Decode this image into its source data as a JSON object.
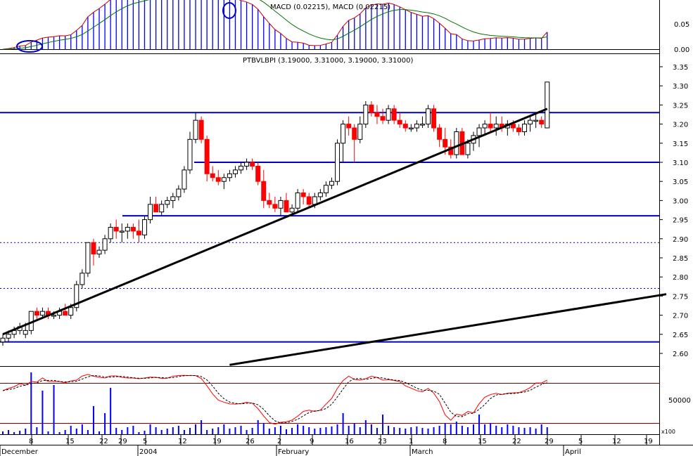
{
  "panels": {
    "macd": {
      "title": "MACD (0.02215), MACD (0.02215)",
      "yticks": [
        "0.05",
        "0.00"
      ]
    },
    "price": {
      "title": "PTBVLBPI (3.19000, 3.31000, 3.19000, 3.31000)",
      "yticks": [
        "3.35",
        "3.30",
        "3.25",
        "3.20",
        "3.15",
        "3.10",
        "3.05",
        "3.00",
        "2.95",
        "2.90",
        "2.85",
        "2.80",
        "2.75",
        "2.70",
        "2.65",
        "2.60"
      ]
    },
    "volume": {
      "yticks": [
        "50000"
      ],
      "multiplier": "x100"
    }
  },
  "xaxis": {
    "day_ticks": [
      "8",
      "15",
      "22",
      "29",
      "5",
      "12",
      "19",
      "26",
      "2",
      "9",
      "16",
      "23",
      "1",
      "8",
      "15",
      "22",
      "29",
      "5",
      "12",
      "19"
    ],
    "month_labels": [
      "December",
      "2004",
      "February",
      "March",
      "April"
    ]
  },
  "colors": {
    "up_candle": "#ffffff",
    "down_candle": "#ff0000",
    "support_lines": "#0000cc",
    "trendlines": "#000000",
    "stoch_fast": "#ff0000",
    "stoch_slow": "#000000",
    "macd_histogram": "#0000ff",
    "macd_line": "#cc0000",
    "signal_line": "#007700",
    "annotation_circle": "#0000cc"
  },
  "chart_data": {
    "type": "candlestick",
    "title": "PTBVLBPI (3.19000, 3.31000, 3.19000, 3.31000)",
    "date_range": [
      "December 2003",
      "April 2004"
    ],
    "ylim": [
      2.57,
      3.37
    ],
    "candles_ohlc": [
      [
        2.63,
        2.65,
        2.62,
        2.64
      ],
      [
        2.64,
        2.66,
        2.63,
        2.65
      ],
      [
        2.65,
        2.67,
        2.64,
        2.66
      ],
      [
        2.66,
        2.68,
        2.65,
        2.67
      ],
      [
        2.65,
        2.68,
        2.64,
        2.66
      ],
      [
        2.66,
        2.71,
        2.65,
        2.71
      ],
      [
        2.71,
        2.72,
        2.69,
        2.7
      ],
      [
        2.7,
        2.72,
        2.69,
        2.71
      ],
      [
        2.71,
        2.72,
        2.69,
        2.7
      ],
      [
        2.7,
        2.71,
        2.69,
        2.7
      ],
      [
        2.7,
        2.72,
        2.69,
        2.71
      ],
      [
        2.71,
        2.73,
        2.7,
        2.7
      ],
      [
        2.7,
        2.73,
        2.69,
        2.72
      ],
      [
        2.72,
        2.79,
        2.71,
        2.78
      ],
      [
        2.78,
        2.82,
        2.77,
        2.81
      ],
      [
        2.81,
        2.89,
        2.8,
        2.89
      ],
      [
        2.89,
        2.9,
        2.83,
        2.86
      ],
      [
        2.86,
        2.88,
        2.85,
        2.87
      ],
      [
        2.87,
        2.91,
        2.86,
        2.9
      ],
      [
        2.9,
        2.94,
        2.89,
        2.93
      ],
      [
        2.93,
        2.95,
        2.9,
        2.92
      ],
      [
        2.92,
        2.94,
        2.89,
        2.92
      ],
      [
        2.92,
        2.94,
        2.9,
        2.93
      ],
      [
        2.93,
        2.94,
        2.9,
        2.92
      ],
      [
        2.92,
        2.95,
        2.89,
        2.91
      ],
      [
        2.91,
        2.96,
        2.9,
        2.95
      ],
      [
        2.95,
        3.01,
        2.94,
        2.99
      ],
      [
        2.99,
        3.01,
        2.97,
        2.97
      ],
      [
        2.97,
        3.0,
        2.96,
        2.99
      ],
      [
        2.99,
        3.01,
        2.98,
        3.0
      ],
      [
        3.0,
        3.02,
        2.98,
        3.01
      ],
      [
        3.01,
        3.04,
        3.0,
        3.03
      ],
      [
        3.03,
        3.09,
        3.02,
        3.08
      ],
      [
        3.08,
        3.18,
        3.07,
        3.16
      ],
      [
        3.16,
        3.23,
        3.15,
        3.21
      ],
      [
        3.21,
        3.22,
        3.15,
        3.16
      ],
      [
        3.16,
        3.17,
        3.05,
        3.07
      ],
      [
        3.07,
        3.09,
        3.05,
        3.06
      ],
      [
        3.06,
        3.08,
        3.04,
        3.05
      ],
      [
        3.05,
        3.07,
        3.03,
        3.06
      ],
      [
        3.06,
        3.08,
        3.05,
        3.07
      ],
      [
        3.07,
        3.09,
        3.06,
        3.08
      ],
      [
        3.08,
        3.1,
        3.07,
        3.09
      ],
      [
        3.09,
        3.11,
        3.08,
        3.1
      ],
      [
        3.1,
        3.11,
        3.08,
        3.09
      ],
      [
        3.09,
        3.1,
        3.04,
        3.05
      ],
      [
        3.05,
        3.08,
        2.98,
        3.0
      ],
      [
        3.0,
        3.02,
        2.98,
        2.99
      ],
      [
        2.99,
        3.01,
        2.97,
        2.98
      ],
      [
        2.98,
        3.01,
        2.96,
        3.0
      ],
      [
        3.0,
        3.02,
        2.97,
        2.97
      ],
      [
        2.97,
        2.99,
        2.96,
        2.98
      ],
      [
        2.98,
        3.03,
        2.97,
        3.02
      ],
      [
        3.02,
        3.03,
        2.99,
        3.01
      ],
      [
        3.01,
        3.02,
        2.98,
        2.99
      ],
      [
        2.99,
        3.02,
        2.98,
        3.01
      ],
      [
        3.01,
        3.03,
        3.0,
        3.02
      ],
      [
        3.02,
        3.05,
        3.01,
        3.04
      ],
      [
        3.04,
        3.06,
        3.03,
        3.05
      ],
      [
        3.05,
        3.16,
        3.04,
        3.15
      ],
      [
        3.15,
        3.21,
        3.1,
        3.2
      ],
      [
        3.2,
        3.22,
        3.17,
        3.19
      ],
      [
        3.19,
        3.2,
        3.1,
        3.16
      ],
      [
        3.16,
        3.22,
        3.15,
        3.2
      ],
      [
        3.2,
        3.26,
        3.19,
        3.25
      ],
      [
        3.25,
        3.26,
        3.22,
        3.23
      ],
      [
        3.23,
        3.25,
        3.2,
        3.22
      ],
      [
        3.22,
        3.24,
        3.2,
        3.21
      ],
      [
        3.21,
        3.25,
        3.2,
        3.24
      ],
      [
        3.24,
        3.25,
        3.2,
        3.21
      ],
      [
        3.21,
        3.23,
        3.19,
        3.2
      ],
      [
        3.2,
        3.21,
        3.18,
        3.19
      ],
      [
        3.19,
        3.2,
        3.18,
        3.19
      ],
      [
        3.19,
        3.21,
        3.18,
        3.2
      ],
      [
        3.2,
        3.22,
        3.19,
        3.2
      ],
      [
        3.2,
        3.25,
        3.19,
        3.24
      ],
      [
        3.24,
        3.25,
        3.18,
        3.19
      ],
      [
        3.19,
        3.2,
        3.14,
        3.16
      ],
      [
        3.16,
        3.19,
        3.12,
        3.14
      ],
      [
        3.14,
        3.16,
        3.11,
        3.12
      ],
      [
        3.12,
        3.19,
        3.11,
        3.18
      ],
      [
        3.18,
        3.19,
        3.12,
        3.12
      ],
      [
        3.12,
        3.16,
        3.11,
        3.15
      ],
      [
        3.15,
        3.18,
        3.13,
        3.17
      ],
      [
        3.17,
        3.2,
        3.14,
        3.19
      ],
      [
        3.19,
        3.21,
        3.17,
        3.2
      ],
      [
        3.2,
        3.23,
        3.18,
        3.19
      ],
      [
        3.19,
        3.22,
        3.17,
        3.2
      ],
      [
        3.2,
        3.22,
        3.18,
        3.19
      ],
      [
        3.19,
        3.21,
        3.17,
        3.2
      ],
      [
        3.2,
        3.21,
        3.18,
        3.19
      ],
      [
        3.19,
        3.2,
        3.17,
        3.18
      ],
      [
        3.18,
        3.21,
        3.17,
        3.2
      ],
      [
        3.2,
        3.22,
        3.18,
        3.21
      ],
      [
        3.21,
        3.23,
        3.19,
        3.21
      ],
      [
        3.21,
        3.22,
        3.19,
        3.2
      ],
      [
        3.19,
        3.31,
        3.19,
        3.31
      ]
    ],
    "horizontal_levels": [
      3.23,
      3.1,
      2.96,
      2.63
    ],
    "dotted_levels": [
      2.89,
      2.77
    ],
    "trendlines": [
      {
        "from": [
          0,
          2.65
        ],
        "to": [
          96,
          3.24
        ]
      },
      {
        "from": [
          40,
          2.57
        ],
        "to": [
          117,
          2.755
        ]
      }
    ]
  }
}
